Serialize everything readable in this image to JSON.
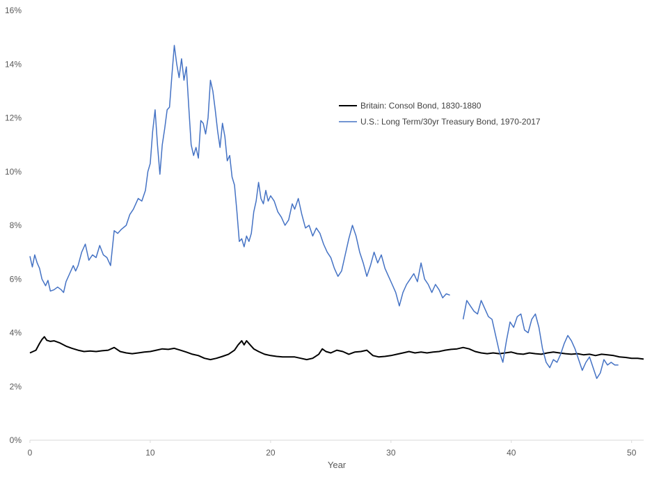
{
  "chart_data": {
    "type": "line",
    "title": "",
    "xlabel": "Year",
    "ylabel": "",
    "xlim": [
      0,
      51
    ],
    "ylim": [
      0,
      16
    ],
    "x_ticks": [
      0,
      10,
      20,
      30,
      40,
      50
    ],
    "y_ticks": [
      0,
      2,
      4,
      6,
      8,
      10,
      12,
      14,
      16
    ],
    "y_tick_labels": [
      "0%",
      "2%",
      "4%",
      "6%",
      "8%",
      "10%",
      "12%",
      "14%",
      "16%"
    ],
    "grid": false,
    "legend_position": "upper-right-center",
    "series": [
      {
        "name": "Britain: Consol Bond, 1830-1880",
        "color": "#000000",
        "points": [
          [
            0,
            3.25
          ],
          [
            0.5,
            3.35
          ],
          [
            0.8,
            3.6
          ],
          [
            1.0,
            3.75
          ],
          [
            1.2,
            3.85
          ],
          [
            1.4,
            3.72
          ],
          [
            1.7,
            3.68
          ],
          [
            2.0,
            3.7
          ],
          [
            2.5,
            3.62
          ],
          [
            3.0,
            3.5
          ],
          [
            3.5,
            3.42
          ],
          [
            4.0,
            3.35
          ],
          [
            4.5,
            3.3
          ],
          [
            5.0,
            3.32
          ],
          [
            5.5,
            3.3
          ],
          [
            6.0,
            3.33
          ],
          [
            6.5,
            3.35
          ],
          [
            7.0,
            3.45
          ],
          [
            7.5,
            3.3
          ],
          [
            8.0,
            3.25
          ],
          [
            8.5,
            3.22
          ],
          [
            9.0,
            3.25
          ],
          [
            9.5,
            3.28
          ],
          [
            10.0,
            3.3
          ],
          [
            10.5,
            3.35
          ],
          [
            11.0,
            3.4
          ],
          [
            11.5,
            3.38
          ],
          [
            12.0,
            3.42
          ],
          [
            12.5,
            3.35
          ],
          [
            13.0,
            3.28
          ],
          [
            13.5,
            3.2
          ],
          [
            14.0,
            3.15
          ],
          [
            14.5,
            3.05
          ],
          [
            15.0,
            3.0
          ],
          [
            15.5,
            3.05
          ],
          [
            16.0,
            3.12
          ],
          [
            16.5,
            3.2
          ],
          [
            17.0,
            3.35
          ],
          [
            17.3,
            3.55
          ],
          [
            17.6,
            3.7
          ],
          [
            17.8,
            3.55
          ],
          [
            18.0,
            3.7
          ],
          [
            18.3,
            3.55
          ],
          [
            18.6,
            3.4
          ],
          [
            19.0,
            3.3
          ],
          [
            19.5,
            3.2
          ],
          [
            20.0,
            3.15
          ],
          [
            20.5,
            3.12
          ],
          [
            21.0,
            3.1
          ],
          [
            21.5,
            3.1
          ],
          [
            22.0,
            3.1
          ],
          [
            22.5,
            3.05
          ],
          [
            23.0,
            3.0
          ],
          [
            23.5,
            3.05
          ],
          [
            24.0,
            3.2
          ],
          [
            24.3,
            3.4
          ],
          [
            24.6,
            3.3
          ],
          [
            25.0,
            3.25
          ],
          [
            25.5,
            3.35
          ],
          [
            26.0,
            3.3
          ],
          [
            26.5,
            3.2
          ],
          [
            27.0,
            3.28
          ],
          [
            27.5,
            3.3
          ],
          [
            28.0,
            3.35
          ],
          [
            28.5,
            3.15
          ],
          [
            29.0,
            3.1
          ],
          [
            29.5,
            3.12
          ],
          [
            30.0,
            3.15
          ],
          [
            30.5,
            3.2
          ],
          [
            31.0,
            3.25
          ],
          [
            31.5,
            3.3
          ],
          [
            32.0,
            3.25
          ],
          [
            32.5,
            3.28
          ],
          [
            33.0,
            3.25
          ],
          [
            33.5,
            3.28
          ],
          [
            34.0,
            3.3
          ],
          [
            34.5,
            3.35
          ],
          [
            35.0,
            3.38
          ],
          [
            35.5,
            3.4
          ],
          [
            36.0,
            3.45
          ],
          [
            36.5,
            3.4
          ],
          [
            37.0,
            3.3
          ],
          [
            37.5,
            3.25
          ],
          [
            38.0,
            3.22
          ],
          [
            38.5,
            3.25
          ],
          [
            39.0,
            3.22
          ],
          [
            39.5,
            3.25
          ],
          [
            40.0,
            3.28
          ],
          [
            40.5,
            3.22
          ],
          [
            41.0,
            3.2
          ],
          [
            41.5,
            3.25
          ],
          [
            42.0,
            3.22
          ],
          [
            42.5,
            3.2
          ],
          [
            43.0,
            3.25
          ],
          [
            43.5,
            3.28
          ],
          [
            44.0,
            3.25
          ],
          [
            44.5,
            3.22
          ],
          [
            45.0,
            3.2
          ],
          [
            45.5,
            3.22
          ],
          [
            46.0,
            3.18
          ],
          [
            46.5,
            3.2
          ],
          [
            47.0,
            3.15
          ],
          [
            47.5,
            3.2
          ],
          [
            48.0,
            3.18
          ],
          [
            48.5,
            3.15
          ],
          [
            49.0,
            3.1
          ],
          [
            49.5,
            3.08
          ],
          [
            50.0,
            3.05
          ],
          [
            50.5,
            3.05
          ],
          [
            51.0,
            3.02
          ]
        ]
      },
      {
        "name": "U.S.: Long Term/30yr Treasury Bond, 1970-2017",
        "color": "#4472C4",
        "segments": [
          [
            [
              0,
              6.85
            ],
            [
              0.2,
              6.45
            ],
            [
              0.4,
              6.9
            ],
            [
              0.6,
              6.6
            ],
            [
              0.8,
              6.4
            ],
            [
              1.0,
              6.0
            ],
            [
              1.3,
              5.75
            ],
            [
              1.5,
              5.95
            ],
            [
              1.7,
              5.55
            ],
            [
              2.0,
              5.6
            ],
            [
              2.3,
              5.7
            ],
            [
              2.6,
              5.6
            ],
            [
              2.8,
              5.5
            ],
            [
              3.0,
              5.9
            ],
            [
              3.3,
              6.2
            ],
            [
              3.6,
              6.5
            ],
            [
              3.8,
              6.3
            ],
            [
              4.0,
              6.5
            ],
            [
              4.3,
              7.0
            ],
            [
              4.6,
              7.3
            ],
            [
              4.9,
              6.7
            ],
            [
              5.2,
              6.9
            ],
            [
              5.5,
              6.8
            ],
            [
              5.8,
              7.25
            ],
            [
              6.1,
              6.9
            ],
            [
              6.4,
              6.8
            ],
            [
              6.7,
              6.5
            ],
            [
              7.0,
              7.8
            ],
            [
              7.3,
              7.7
            ],
            [
              7.6,
              7.85
            ],
            [
              8.0,
              8.0
            ],
            [
              8.3,
              8.4
            ],
            [
              8.6,
              8.6
            ],
            [
              9.0,
              9.0
            ],
            [
              9.3,
              8.9
            ],
            [
              9.6,
              9.3
            ],
            [
              9.8,
              10.0
            ],
            [
              10.0,
              10.3
            ],
            [
              10.2,
              11.5
            ],
            [
              10.4,
              12.3
            ],
            [
              10.6,
              11.0
            ],
            [
              10.8,
              9.9
            ],
            [
              11.0,
              11.0
            ],
            [
              11.2,
              11.6
            ],
            [
              11.4,
              12.3
            ],
            [
              11.6,
              12.4
            ],
            [
              11.8,
              13.6
            ],
            [
              12.0,
              14.7
            ],
            [
              12.2,
              14.0
            ],
            [
              12.4,
              13.5
            ],
            [
              12.6,
              14.2
            ],
            [
              12.8,
              13.4
            ],
            [
              13.0,
              13.9
            ],
            [
              13.2,
              12.4
            ],
            [
              13.4,
              11.0
            ],
            [
              13.6,
              10.6
            ],
            [
              13.8,
              10.9
            ],
            [
              14.0,
              10.5
            ],
            [
              14.2,
              11.9
            ],
            [
              14.4,
              11.8
            ],
            [
              14.6,
              11.4
            ],
            [
              14.8,
              12.0
            ],
            [
              15.0,
              13.4
            ],
            [
              15.2,
              13.0
            ],
            [
              15.4,
              12.3
            ],
            [
              15.6,
              11.5
            ],
            [
              15.8,
              10.9
            ],
            [
              16.0,
              11.8
            ],
            [
              16.2,
              11.3
            ],
            [
              16.4,
              10.4
            ],
            [
              16.6,
              10.6
            ],
            [
              16.8,
              9.8
            ],
            [
              17.0,
              9.5
            ],
            [
              17.2,
              8.5
            ],
            [
              17.4,
              7.4
            ],
            [
              17.6,
              7.5
            ],
            [
              17.8,
              7.2
            ],
            [
              18.0,
              7.6
            ],
            [
              18.2,
              7.4
            ],
            [
              18.4,
              7.7
            ],
            [
              18.6,
              8.5
            ],
            [
              18.8,
              8.9
            ],
            [
              19.0,
              9.6
            ],
            [
              19.2,
              9.0
            ],
            [
              19.4,
              8.8
            ],
            [
              19.6,
              9.3
            ],
            [
              19.8,
              8.9
            ],
            [
              20.0,
              9.1
            ],
            [
              20.3,
              8.9
            ],
            [
              20.6,
              8.5
            ],
            [
              20.9,
              8.3
            ],
            [
              21.2,
              8.0
            ],
            [
              21.5,
              8.2
            ],
            [
              21.8,
              8.8
            ],
            [
              22.0,
              8.6
            ],
            [
              22.3,
              9.0
            ],
            [
              22.6,
              8.4
            ],
            [
              22.9,
              7.9
            ],
            [
              23.2,
              8.0
            ],
            [
              23.5,
              7.6
            ],
            [
              23.8,
              7.9
            ],
            [
              24.1,
              7.7
            ],
            [
              24.4,
              7.3
            ],
            [
              24.7,
              7.0
            ],
            [
              25.0,
              6.8
            ],
            [
              25.3,
              6.4
            ],
            [
              25.6,
              6.1
            ],
            [
              25.9,
              6.3
            ],
            [
              26.2,
              6.9
            ],
            [
              26.5,
              7.5
            ],
            [
              26.8,
              8.0
            ],
            [
              27.1,
              7.6
            ],
            [
              27.4,
              7.0
            ],
            [
              27.7,
              6.6
            ],
            [
              28.0,
              6.1
            ],
            [
              28.3,
              6.5
            ],
            [
              28.6,
              7.0
            ],
            [
              28.9,
              6.6
            ],
            [
              29.2,
              6.9
            ],
            [
              29.5,
              6.4
            ],
            [
              29.8,
              6.1
            ],
            [
              30.1,
              5.8
            ],
            [
              30.4,
              5.5
            ],
            [
              30.7,
              5.0
            ],
            [
              31.0,
              5.5
            ],
            [
              31.3,
              5.8
            ],
            [
              31.6,
              6.0
            ],
            [
              31.9,
              6.2
            ],
            [
              32.2,
              5.9
            ],
            [
              32.5,
              6.6
            ],
            [
              32.8,
              6.0
            ],
            [
              33.1,
              5.8
            ],
            [
              33.4,
              5.5
            ],
            [
              33.7,
              5.8
            ],
            [
              34.0,
              5.6
            ],
            [
              34.3,
              5.3
            ],
            [
              34.6,
              5.45
            ],
            [
              34.9,
              5.4
            ]
          ],
          [
            [
              36.0,
              4.5
            ],
            [
              36.3,
              5.2
            ],
            [
              36.6,
              5.0
            ],
            [
              36.9,
              4.8
            ],
            [
              37.2,
              4.7
            ],
            [
              37.5,
              5.2
            ],
            [
              37.8,
              4.9
            ],
            [
              38.1,
              4.6
            ],
            [
              38.4,
              4.5
            ],
            [
              38.7,
              3.9
            ],
            [
              39.0,
              3.3
            ],
            [
              39.3,
              2.9
            ],
            [
              39.6,
              3.7
            ],
            [
              39.9,
              4.4
            ],
            [
              40.2,
              4.2
            ],
            [
              40.5,
              4.6
            ],
            [
              40.8,
              4.7
            ],
            [
              41.1,
              4.1
            ],
            [
              41.4,
              4.0
            ],
            [
              41.7,
              4.5
            ],
            [
              42.0,
              4.7
            ],
            [
              42.3,
              4.2
            ],
            [
              42.6,
              3.4
            ],
            [
              42.9,
              2.9
            ],
            [
              43.2,
              2.7
            ],
            [
              43.5,
              3.0
            ],
            [
              43.8,
              2.9
            ],
            [
              44.1,
              3.2
            ],
            [
              44.4,
              3.6
            ],
            [
              44.7,
              3.9
            ],
            [
              45.0,
              3.7
            ],
            [
              45.3,
              3.4
            ],
            [
              45.6,
              3.0
            ],
            [
              45.9,
              2.6
            ],
            [
              46.2,
              2.9
            ],
            [
              46.5,
              3.1
            ],
            [
              46.8,
              2.7
            ],
            [
              47.1,
              2.3
            ],
            [
              47.4,
              2.5
            ],
            [
              47.7,
              3.0
            ],
            [
              48.0,
              2.8
            ],
            [
              48.3,
              2.9
            ],
            [
              48.6,
              2.8
            ],
            [
              48.9,
              2.8
            ]
          ]
        ]
      }
    ]
  }
}
